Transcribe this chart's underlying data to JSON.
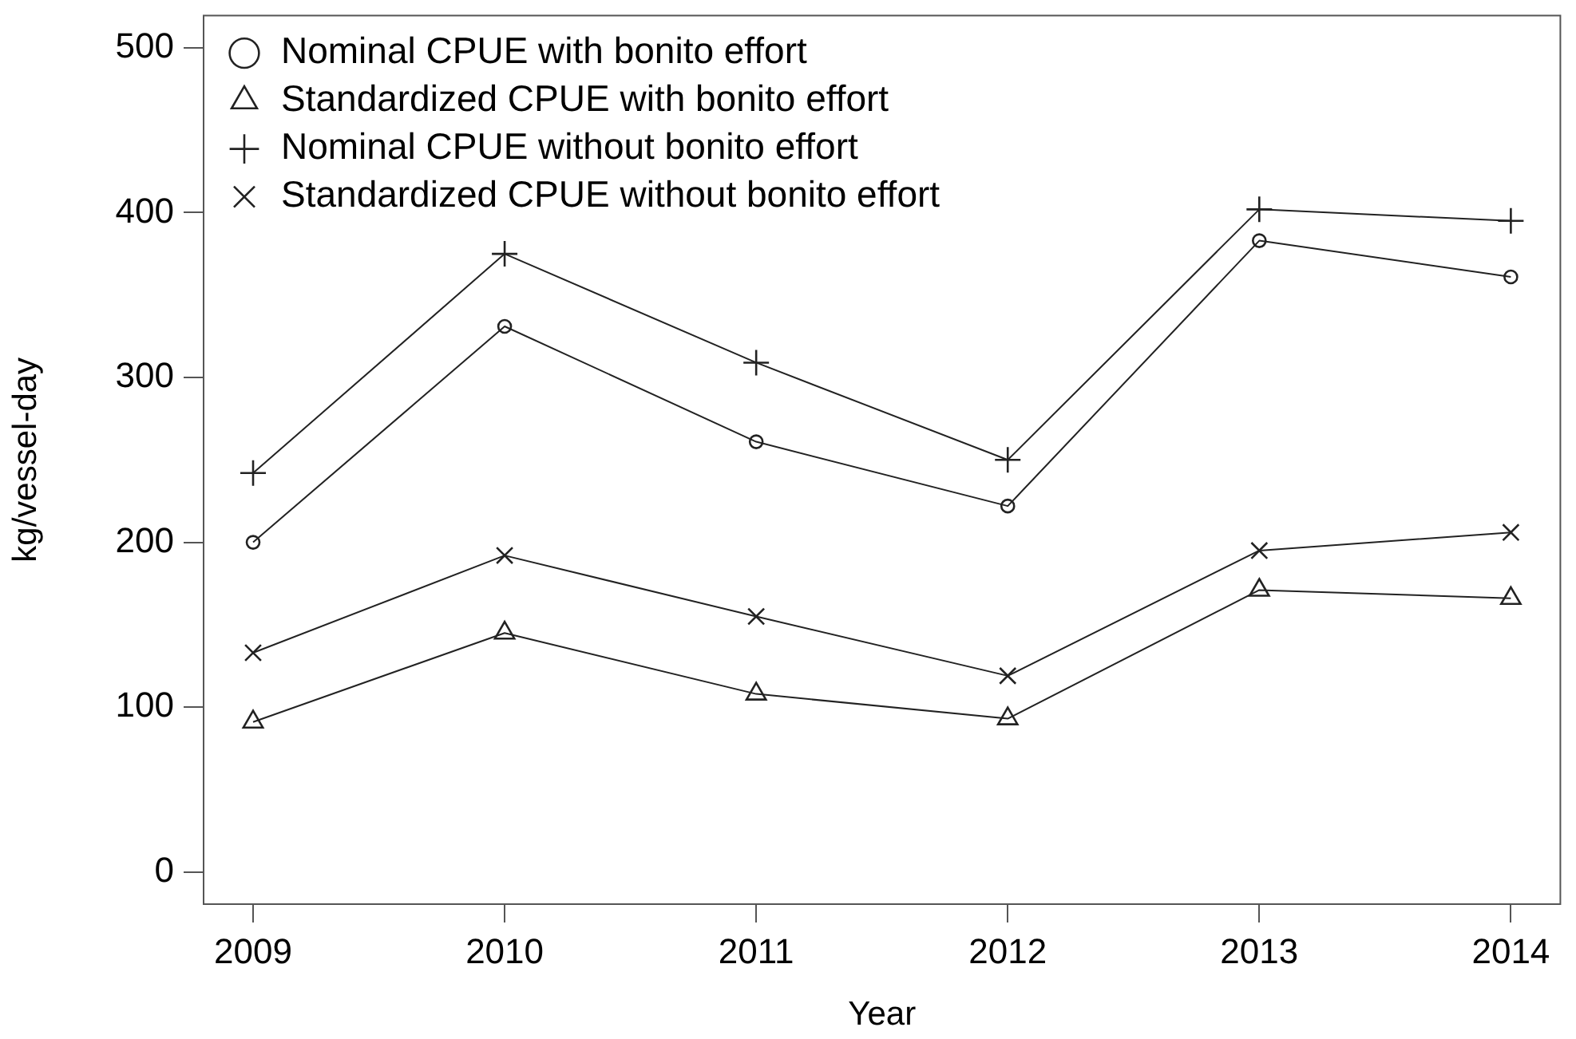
{
  "chart_data": {
    "type": "line",
    "xlabel": "Year",
    "ylabel": "kg/vessel-day",
    "x": [
      2009,
      2010,
      2011,
      2012,
      2013,
      2014
    ],
    "xlim": [
      2008.8,
      2014.2
    ],
    "xticks": [
      2009,
      2010,
      2011,
      2012,
      2013,
      2014
    ],
    "ylim": [
      -20,
      520
    ],
    "yticks": [
      0,
      100,
      200,
      300,
      400,
      500
    ],
    "legend": "top left",
    "series": [
      {
        "name": "Nominal CPUE with bonito effort",
        "color": "#222222",
        "marker": "circle",
        "values": [
          200,
          331,
          261,
          222,
          383,
          361
        ]
      },
      {
        "name": "Standardized CPUE with bonito effort",
        "color": "#222222",
        "marker": "triangle",
        "values": [
          91,
          145,
          108,
          93,
          171,
          166
        ]
      },
      {
        "name": "Nominal CPUE without bonito effort",
        "color": "#222222",
        "marker": "cross",
        "values": [
          242,
          375,
          309,
          250,
          402,
          395
        ]
      },
      {
        "name": "Standardized CPUE without bonito effort",
        "color": "#222222",
        "marker": "x",
        "values": [
          133,
          192,
          155,
          119,
          195,
          206
        ]
      }
    ]
  }
}
